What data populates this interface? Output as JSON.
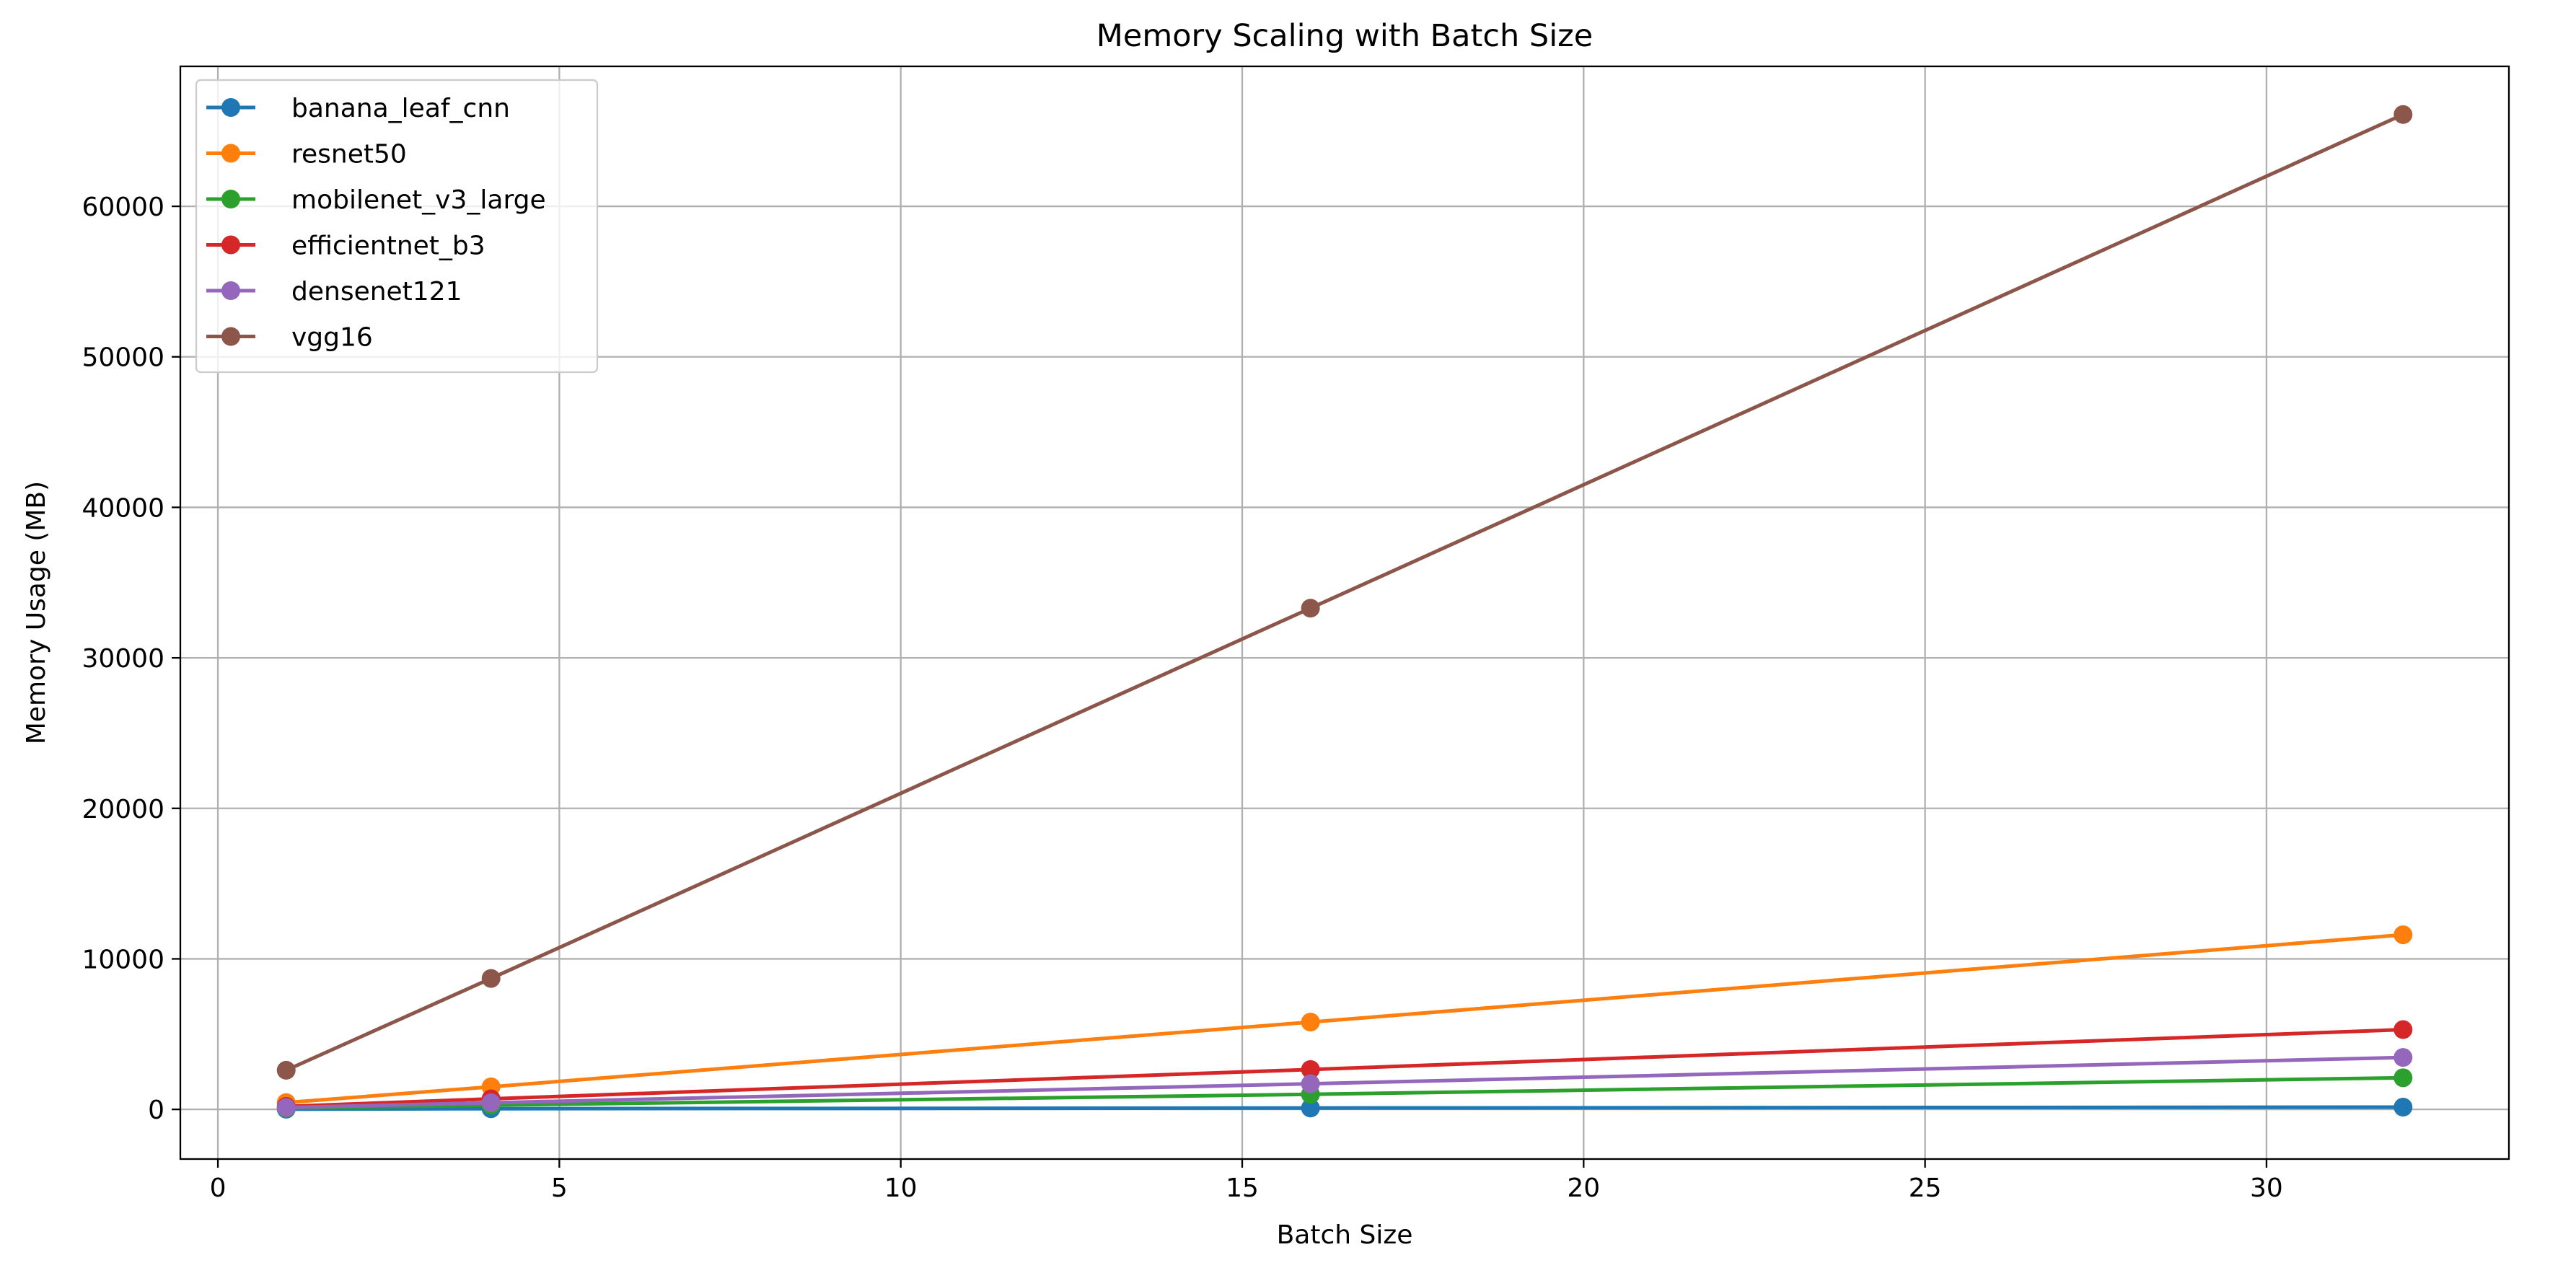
{
  "chart_data": {
    "type": "line",
    "title": "Memory Scaling with Batch Size",
    "xlabel": "Batch Size",
    "ylabel": "Memory Usage (MB)",
    "xlim": [
      -0.55,
      33.55
    ],
    "ylim": [
      -3300,
      69300
    ],
    "xticks": [
      0,
      5,
      10,
      15,
      20,
      25,
      30
    ],
    "yticks": [
      0,
      10000,
      20000,
      30000,
      40000,
      50000,
      60000
    ],
    "x": [
      1,
      4,
      16,
      32
    ],
    "grid": true,
    "legend_position": "upper-left",
    "series": [
      {
        "name": "banana_leaf_cnn",
        "color": "#1f77b4",
        "marker": "circle",
        "values": [
          15,
          45,
          90,
          150
        ]
      },
      {
        "name": "resnet50",
        "color": "#ff7f0e",
        "marker": "circle",
        "values": [
          450,
          1500,
          5800,
          11600
        ]
      },
      {
        "name": "mobilenet_v3_large",
        "color": "#2ca02c",
        "marker": "circle",
        "values": [
          80,
          280,
          1000,
          2100
        ]
      },
      {
        "name": "efficientnet_b3",
        "color": "#d62728",
        "marker": "circle",
        "values": [
          200,
          700,
          2650,
          5300
        ]
      },
      {
        "name": "densenet121",
        "color": "#9467bd",
        "marker": "circle",
        "values": [
          120,
          440,
          1700,
          3450
        ]
      },
      {
        "name": "vgg16",
        "color": "#8c564b",
        "marker": "circle",
        "values": [
          2600,
          8700,
          33300,
          66100
        ]
      }
    ]
  }
}
